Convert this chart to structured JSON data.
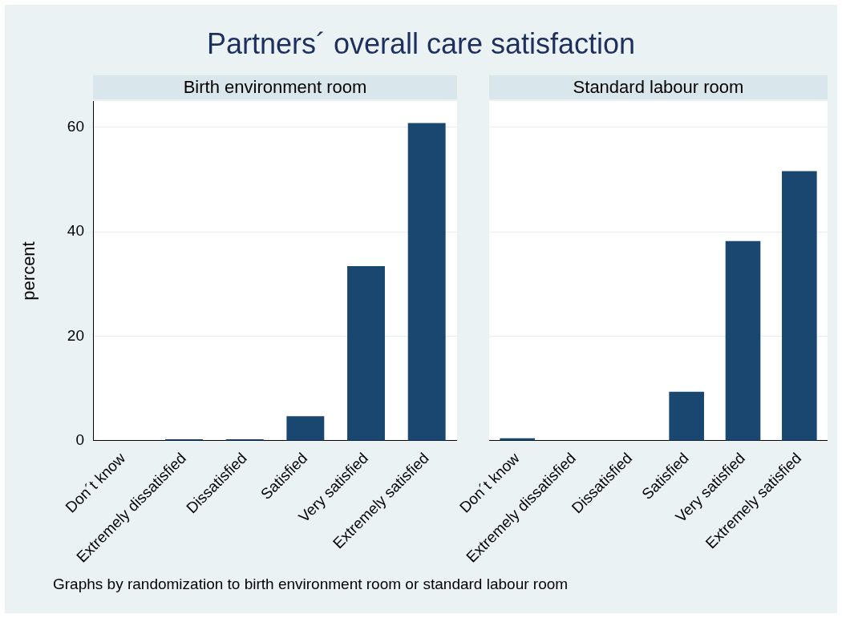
{
  "chart_data": [
    {
      "type": "bar",
      "title": "Partners´ overall care satisfaction",
      "subtitle": "Birth environment room",
      "ylabel": "percent",
      "categories": [
        "Don´t know",
        "Extremely dissatisfied",
        "Dissatisfied",
        "Satisfied",
        "Very satisfied",
        "Extremely satisfied"
      ],
      "values": [
        0,
        0.3,
        0.3,
        4.7,
        33.4,
        60.8
      ],
      "color": "#1a476f",
      "ylim": [
        0,
        65
      ],
      "yticks": [
        0,
        20,
        40,
        60
      ],
      "grid": "y"
    },
    {
      "type": "bar",
      "subtitle": "Standard labour room",
      "categories": [
        "Don´t know",
        "Extremely dissatisfied",
        "Dissatisfied",
        "Satisfied",
        "Very satisfied",
        "Extremely satisfied"
      ],
      "values": [
        0.5,
        0,
        0,
        9.4,
        38.2,
        51.6
      ],
      "color": "#1a476f",
      "ylim": [
        0,
        65
      ],
      "yticks": [
        0,
        20,
        40,
        60
      ],
      "grid": "y",
      "tick_labels": "x",
      "annotations": [
        "Graphs by randomization to birth environment room or standard labour room"
      ]
    }
  ]
}
